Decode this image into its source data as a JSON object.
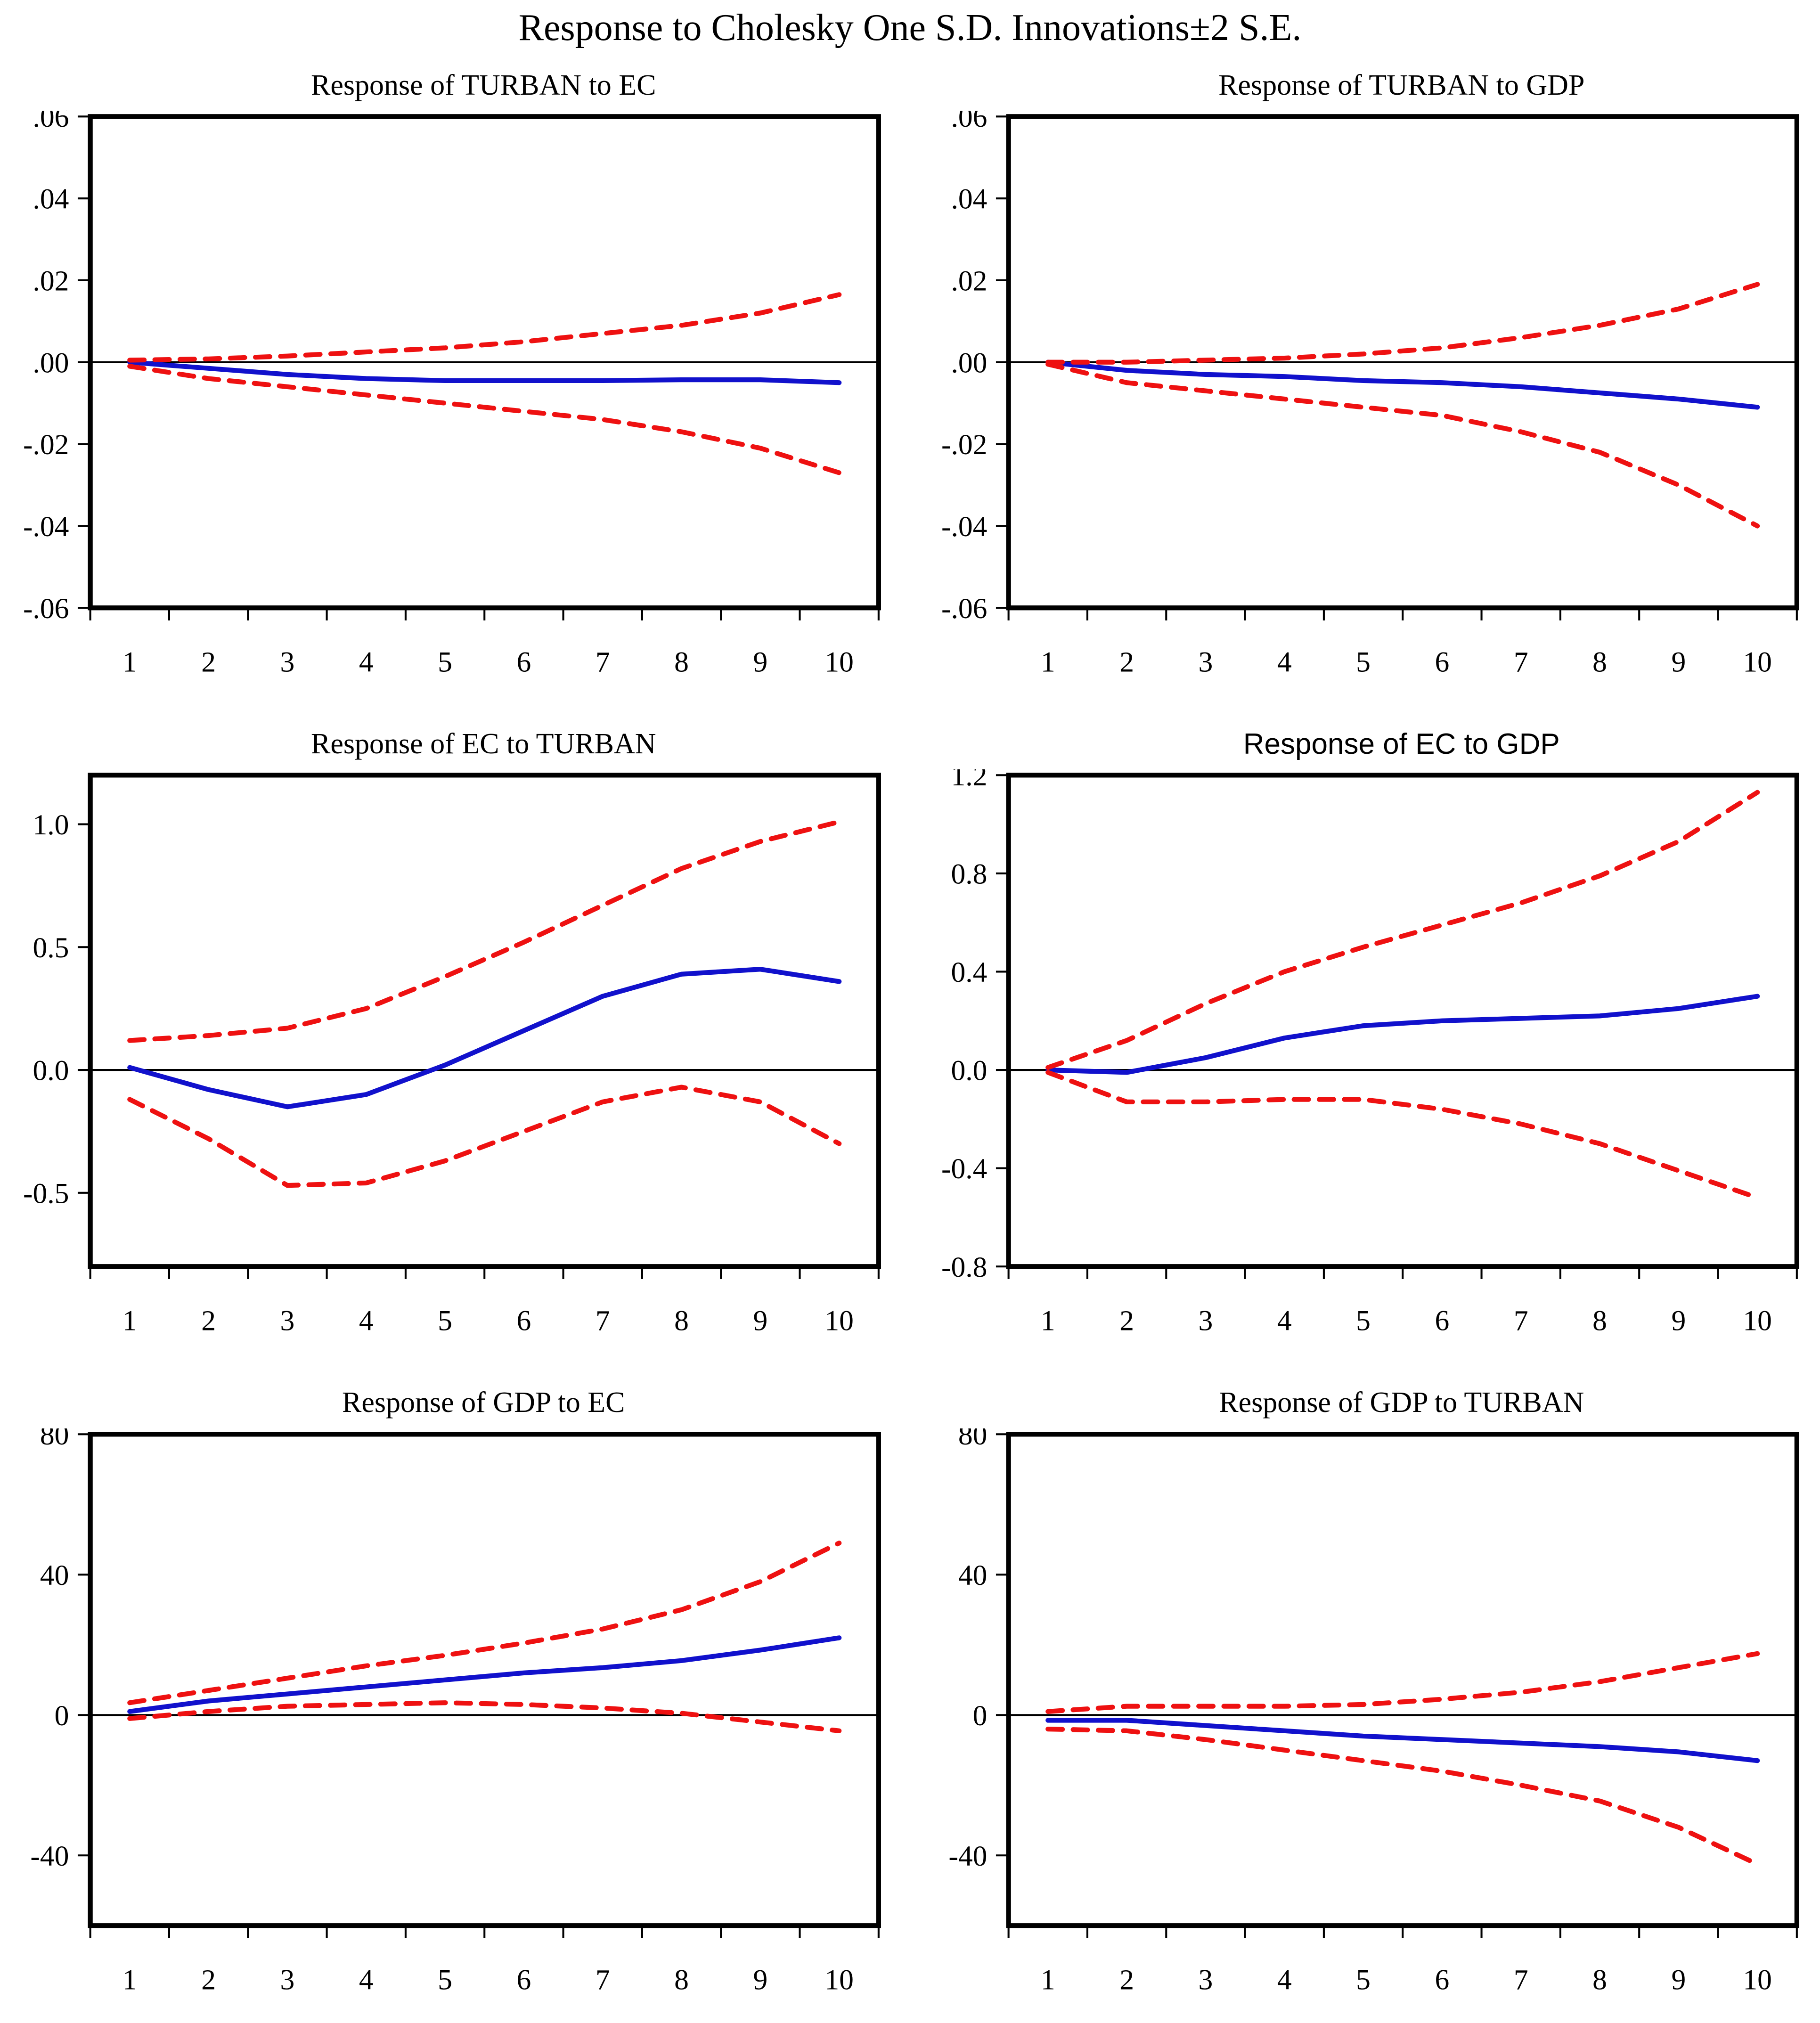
{
  "page_title": "Response to Cholesky One S.D. Innovations±2 S.E.",
  "chart_data": {
    "type": "line",
    "layout": "grid-2x3",
    "grid": false,
    "legend_position": "none",
    "x_categories": [
      "1",
      "2",
      "3",
      "4",
      "5",
      "6",
      "7",
      "8",
      "9",
      "10"
    ],
    "colors": {
      "response_line": "#1111cc",
      "band_line": "#ee1111",
      "axis": "#000000",
      "background": "#ffffff"
    },
    "panels": [
      {
        "title": "Response of TURBAN to EC",
        "title_font": "serif",
        "ylim": [
          -0.06,
          0.06
        ],
        "yticks": [
          {
            "label": ".06",
            "value": 0.06
          },
          {
            "label": ".04",
            "value": 0.04
          },
          {
            "label": ".02",
            "value": 0.02
          },
          {
            "label": ".00",
            "value": 0.0
          },
          {
            "label": "-.02",
            "value": -0.02
          },
          {
            "label": "-.04",
            "value": -0.04
          },
          {
            "label": "-.06",
            "value": -0.06
          }
        ],
        "series": [
          {
            "name": "response",
            "style": "solid",
            "color_key": "response_line",
            "values": [
              0.0,
              -0.0015,
              -0.003,
              -0.004,
              -0.0045,
              -0.0045,
              -0.0045,
              -0.0043,
              -0.0043,
              -0.005
            ]
          },
          {
            "name": "upper-2se",
            "style": "dashed",
            "color_key": "band_line",
            "values": [
              0.0005,
              0.0008,
              0.0015,
              0.0025,
              0.0035,
              0.005,
              0.007,
              0.009,
              0.012,
              0.0165
            ]
          },
          {
            "name": "lower-2se",
            "style": "dashed",
            "color_key": "band_line",
            "values": [
              -0.001,
              -0.004,
              -0.006,
              -0.008,
              -0.01,
              -0.012,
              -0.014,
              -0.017,
              -0.021,
              -0.027
            ]
          }
        ]
      },
      {
        "title": "Response of TURBAN to GDP",
        "title_font": "serif",
        "ylim": [
          -0.06,
          0.06
        ],
        "yticks": [
          {
            "label": ".06",
            "value": 0.06
          },
          {
            "label": ".04",
            "value": 0.04
          },
          {
            "label": ".02",
            "value": 0.02
          },
          {
            "label": ".00",
            "value": 0.0
          },
          {
            "label": "-.02",
            "value": -0.02
          },
          {
            "label": "-.04",
            "value": -0.04
          },
          {
            "label": "-.06",
            "value": -0.06
          }
        ],
        "series": [
          {
            "name": "response",
            "style": "solid",
            "color_key": "response_line",
            "values": [
              0.0,
              -0.002,
              -0.003,
              -0.0035,
              -0.0045,
              -0.005,
              -0.006,
              -0.0075,
              -0.009,
              -0.011
            ]
          },
          {
            "name": "upper-2se",
            "style": "dashed",
            "color_key": "band_line",
            "values": [
              0.0,
              0.0,
              0.0005,
              0.001,
              0.002,
              0.0035,
              0.006,
              0.009,
              0.013,
              0.019
            ]
          },
          {
            "name": "lower-2se",
            "style": "dashed",
            "color_key": "band_line",
            "values": [
              -0.0005,
              -0.005,
              -0.007,
              -0.009,
              -0.011,
              -0.013,
              -0.017,
              -0.022,
              -0.03,
              -0.04
            ]
          }
        ]
      },
      {
        "title": "Response of EC to TURBAN",
        "title_font": "serif",
        "ylim": [
          -0.8,
          1.2
        ],
        "yticks": [
          {
            "label": "1.0",
            "value": 1.0
          },
          {
            "label": "0.5",
            "value": 0.5
          },
          {
            "label": "0.0",
            "value": 0.0
          },
          {
            "label": "-0.5",
            "value": -0.5
          }
        ],
        "series": [
          {
            "name": "response",
            "style": "solid",
            "color_key": "response_line",
            "values": [
              0.01,
              -0.08,
              -0.15,
              -0.1,
              0.02,
              0.16,
              0.3,
              0.39,
              0.41,
              0.36
            ]
          },
          {
            "name": "upper-2se",
            "style": "dashed",
            "color_key": "band_line",
            "values": [
              0.12,
              0.14,
              0.17,
              0.25,
              0.38,
              0.52,
              0.67,
              0.82,
              0.93,
              1.01
            ]
          },
          {
            "name": "lower-2se",
            "style": "dashed",
            "color_key": "band_line",
            "values": [
              -0.12,
              -0.28,
              -0.47,
              -0.46,
              -0.37,
              -0.25,
              -0.13,
              -0.07,
              -0.13,
              -0.3
            ]
          }
        ]
      },
      {
        "title": "Response of EC to GDP",
        "title_font": "sans",
        "ylim": [
          -0.8,
          1.2
        ],
        "yticks": [
          {
            "label": "1.2",
            "value": 1.2
          },
          {
            "label": "0.8",
            "value": 0.8
          },
          {
            "label": "0.4",
            "value": 0.4
          },
          {
            "label": "0.0",
            "value": 0.0
          },
          {
            "label": "-0.4",
            "value": -0.4
          },
          {
            "label": "-0.8",
            "value": -0.8
          }
        ],
        "series": [
          {
            "name": "response",
            "style": "solid",
            "color_key": "response_line",
            "values": [
              0.0,
              -0.01,
              0.05,
              0.13,
              0.18,
              0.2,
              0.21,
              0.22,
              0.25,
              0.3
            ]
          },
          {
            "name": "upper-2se",
            "style": "dashed",
            "color_key": "band_line",
            "values": [
              0.01,
              0.12,
              0.27,
              0.4,
              0.5,
              0.59,
              0.68,
              0.79,
              0.93,
              1.13
            ]
          },
          {
            "name": "lower-2se",
            "style": "dashed",
            "color_key": "band_line",
            "values": [
              -0.01,
              -0.13,
              -0.13,
              -0.12,
              -0.12,
              -0.16,
              -0.22,
              -0.3,
              -0.41,
              -0.52
            ]
          }
        ]
      },
      {
        "title": "Response of GDP to EC",
        "title_font": "serif",
        "ylim": [
          -60,
          80
        ],
        "yticks": [
          {
            "label": "80",
            "value": 80
          },
          {
            "label": "40",
            "value": 40
          },
          {
            "label": "0",
            "value": 0
          },
          {
            "label": "-40",
            "value": -40
          }
        ],
        "series": [
          {
            "name": "response",
            "style": "solid",
            "color_key": "response_line",
            "values": [
              1,
              4,
              6,
              8,
              10,
              12,
              13.5,
              15.5,
              18.5,
              22
            ]
          },
          {
            "name": "upper-2se",
            "style": "dashed",
            "color_key": "band_line",
            "values": [
              3.5,
              7,
              10.5,
              14,
              17,
              20.5,
              24.5,
              30,
              38,
              49
            ]
          },
          {
            "name": "lower-2se",
            "style": "dashed",
            "color_key": "band_line",
            "values": [
              -1,
              1,
              2.5,
              3,
              3.5,
              3,
              2,
              0.5,
              -2,
              -4.5
            ]
          }
        ]
      },
      {
        "title": "Response of GDP to TURBAN",
        "title_font": "serif",
        "ylim": [
          -60,
          80
        ],
        "yticks": [
          {
            "label": "80",
            "value": 80
          },
          {
            "label": "40",
            "value": 40
          },
          {
            "label": "0",
            "value": 0
          },
          {
            "label": "-40",
            "value": -40
          }
        ],
        "series": [
          {
            "name": "response",
            "style": "solid",
            "color_key": "response_line",
            "values": [
              -1.5,
              -1.5,
              -3,
              -4.5,
              -6,
              -7,
              -8,
              -9,
              -10.5,
              -13
            ]
          },
          {
            "name": "upper-2se",
            "style": "dashed",
            "color_key": "band_line",
            "values": [
              1,
              2.5,
              2.5,
              2.5,
              3,
              4.5,
              6.5,
              9.5,
              13.5,
              17.5
            ]
          },
          {
            "name": "lower-2se",
            "style": "dashed",
            "color_key": "band_line",
            "values": [
              -4,
              -4.5,
              -7,
              -10,
              -13,
              -16,
              -20,
              -24.5,
              -32,
              -42.5
            ]
          }
        ]
      }
    ]
  }
}
